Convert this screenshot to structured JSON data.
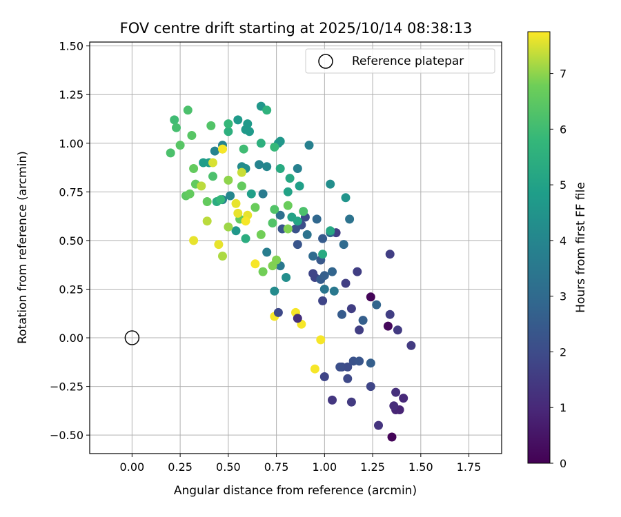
{
  "chart_data": {
    "type": "scatter",
    "title": "FOV centre drift starting at 2025/10/14 08:38:13",
    "xlabel": "Angular distance from reference (arcmin)",
    "ylabel": "Rotation from reference (arcmin)",
    "xlim": [
      -0.22,
      1.92
    ],
    "ylim": [
      -0.595,
      1.52
    ],
    "xticks": [
      "0.00",
      "0.25",
      "0.50",
      "0.75",
      "1.00",
      "1.25",
      "1.50",
      "1.75"
    ],
    "yticks": [
      "−0.50",
      "−0.25",
      "0.00",
      "0.25",
      "0.50",
      "0.75",
      "1.00",
      "1.25",
      "1.50"
    ],
    "grid": true,
    "legend": {
      "location": "upper right",
      "label": "Reference platepar"
    },
    "reference_point": {
      "x": 0.0,
      "y": 0.0
    },
    "colorbar": {
      "label": "Hours from first FF file",
      "min": 0,
      "max": 7.75,
      "ticks": [
        "0",
        "1",
        "2",
        "3",
        "4",
        "5",
        "6",
        "7"
      ],
      "colormap": "viridis"
    },
    "points": [
      [
        1.35,
        -0.51,
        0.1
      ],
      [
        1.24,
        0.21,
        0.1
      ],
      [
        1.33,
        0.06,
        0.2
      ],
      [
        1.37,
        -0.37,
        0.9
      ],
      [
        1.39,
        -0.37,
        0.9
      ],
      [
        1.41,
        -0.31,
        1.0
      ],
      [
        1.36,
        -0.35,
        1.1
      ],
      [
        1.37,
        -0.28,
        1.2
      ],
      [
        1.28,
        -0.45,
        1.3
      ],
      [
        1.04,
        -0.32,
        1.4
      ],
      [
        1.14,
        -0.33,
        1.5
      ],
      [
        1.45,
        -0.04,
        1.5
      ],
      [
        1.38,
        0.04,
        1.5
      ],
      [
        1.34,
        0.12,
        1.6
      ],
      [
        1.34,
        0.43,
        1.6
      ],
      [
        1.17,
        0.34,
        1.6
      ],
      [
        1.18,
        0.04,
        1.6
      ],
      [
        1.14,
        0.15,
        1.6
      ],
      [
        1.11,
        0.28,
        1.6
      ],
      [
        1.06,
        0.54,
        1.6
      ],
      [
        0.95,
        0.31,
        1.8
      ],
      [
        0.94,
        0.33,
        1.8
      ],
      [
        0.99,
        0.19,
        1.8
      ],
      [
        1.0,
        -0.2,
        1.8
      ],
      [
        1.24,
        -0.25,
        1.8
      ],
      [
        1.12,
        -0.21,
        1.9
      ],
      [
        1.12,
        -0.15,
        2.0
      ],
      [
        1.09,
        -0.15,
        2.0
      ],
      [
        1.08,
        -0.15,
        2.1
      ],
      [
        1.15,
        -0.12,
        2.2
      ],
      [
        1.18,
        -0.12,
        2.3
      ],
      [
        1.24,
        -0.13,
        2.6
      ],
      [
        1.27,
        0.17,
        2.8
      ],
      [
        1.2,
        0.09,
        2.6
      ],
      [
        1.09,
        0.12,
        2.5
      ],
      [
        0.9,
        0.62,
        2.0
      ],
      [
        0.88,
        0.58,
        2.1
      ],
      [
        0.85,
        0.56,
        2.2
      ],
      [
        0.86,
        0.48,
        2.3
      ],
      [
        0.78,
        0.56,
        2.3
      ],
      [
        0.98,
        0.4,
        2.4
      ],
      [
        0.98,
        0.3,
        2.5
      ],
      [
        0.99,
        0.51,
        2.5
      ],
      [
        1.0,
        0.32,
        2.6
      ],
      [
        1.04,
        0.34,
        2.8
      ],
      [
        0.96,
        0.61,
        2.9
      ],
      [
        1.03,
        0.54,
        2.9
      ],
      [
        0.94,
        0.42,
        3.0
      ],
      [
        1.1,
        0.48,
        3.0
      ],
      [
        0.77,
        0.63,
        3.2
      ],
      [
        0.91,
        0.53,
        3.3
      ],
      [
        1.13,
        0.61,
        3.3
      ],
      [
        1.0,
        0.25,
        3.4
      ],
      [
        1.05,
        0.24,
        3.5
      ],
      [
        0.77,
        0.37,
        3.5
      ],
      [
        0.68,
        0.74,
        3.6
      ],
      [
        0.7,
        0.44,
        3.7
      ],
      [
        0.86,
        0.87,
        3.8
      ],
      [
        0.74,
        0.24,
        4.2
      ],
      [
        0.8,
        0.31,
        4.3
      ],
      [
        0.47,
        0.71,
        3.8
      ],
      [
        0.92,
        0.99,
        3.8
      ],
      [
        0.66,
        0.89,
        3.9
      ],
      [
        0.43,
        0.96,
        3.9
      ],
      [
        0.47,
        0.99,
        3.9
      ],
      [
        0.51,
        0.73,
        4.0
      ],
      [
        0.7,
        0.88,
        4.0
      ],
      [
        0.57,
        0.88,
        4.2
      ],
      [
        0.59,
        0.87,
        4.3
      ],
      [
        1.03,
        0.79,
        4.3
      ],
      [
        1.11,
        0.72,
        4.5
      ],
      [
        0.76,
        1.0,
        4.5
      ],
      [
        0.77,
        1.01,
        4.6
      ],
      [
        0.54,
        0.55,
        4.6
      ],
      [
        0.67,
        1.19,
        4.6
      ],
      [
        0.59,
        1.07,
        4.7
      ],
      [
        0.6,
        1.1,
        4.7
      ],
      [
        0.55,
        1.12,
        4.7
      ],
      [
        0.61,
        1.06,
        4.7
      ],
      [
        0.37,
        0.9,
        4.8
      ],
      [
        0.4,
        0.9,
        4.8
      ],
      [
        0.87,
        0.78,
        4.9
      ],
      [
        0.62,
        0.74,
        4.9
      ],
      [
        0.81,
        0.75,
        5.0
      ],
      [
        0.83,
        0.62,
        5.0
      ],
      [
        0.86,
        0.6,
        5.1
      ],
      [
        0.82,
        0.82,
        5.2
      ],
      [
        1.03,
        0.55,
        5.2
      ],
      [
        0.99,
        0.43,
        5.3
      ],
      [
        0.59,
        0.51,
        5.4
      ],
      [
        0.44,
        0.7,
        5.4
      ],
      [
        0.5,
        1.06,
        5.5
      ],
      [
        0.67,
        1.0,
        5.5
      ],
      [
        0.77,
        0.87,
        5.3
      ],
      [
        0.7,
        1.17,
        5.6
      ],
      [
        0.5,
        1.1,
        5.8
      ],
      [
        0.46,
        0.71,
        5.8
      ],
      [
        0.74,
        0.98,
        5.8
      ],
      [
        0.58,
        0.97,
        6.0
      ],
      [
        0.22,
        1.12,
        6.0
      ],
      [
        0.23,
        1.08,
        6.1
      ],
      [
        0.29,
        1.17,
        6.2
      ],
      [
        0.2,
        0.95,
        6.2
      ],
      [
        0.42,
        0.83,
        6.2
      ],
      [
        0.73,
        0.59,
        6.3
      ],
      [
        0.74,
        0.66,
        6.3
      ],
      [
        0.89,
        0.65,
        6.2
      ],
      [
        0.31,
        1.04,
        6.4
      ],
      [
        0.41,
        1.09,
        6.3
      ],
      [
        0.25,
        0.99,
        6.4
      ],
      [
        0.28,
        0.73,
        6.5
      ],
      [
        0.3,
        0.74,
        6.6
      ],
      [
        0.33,
        0.79,
        6.6
      ],
      [
        0.32,
        0.87,
        6.6
      ],
      [
        0.39,
        0.7,
        6.6
      ],
      [
        0.57,
        0.78,
        6.6
      ],
      [
        0.56,
        0.61,
        6.6
      ],
      [
        0.64,
        0.67,
        6.7
      ],
      [
        0.67,
        0.53,
        6.8
      ],
      [
        0.68,
        0.34,
        6.8
      ],
      [
        0.73,
        0.37,
        6.9
      ],
      [
        0.75,
        0.4,
        6.9
      ],
      [
        0.81,
        0.56,
        6.9
      ],
      [
        0.81,
        0.68,
        6.7
      ],
      [
        0.5,
        0.81,
        7.0
      ],
      [
        0.47,
        0.97,
        7.1
      ],
      [
        0.5,
        0.57,
        7.1
      ],
      [
        0.47,
        0.42,
        7.2
      ],
      [
        0.36,
        0.78,
        7.3
      ],
      [
        0.39,
        0.6,
        7.3
      ],
      [
        0.57,
        0.85,
        7.4
      ],
      [
        0.42,
        0.9,
        7.5
      ],
      [
        0.6,
        0.63,
        7.6
      ],
      [
        0.54,
        0.69,
        7.6
      ],
      [
        0.55,
        0.64,
        7.6
      ],
      [
        0.32,
        0.5,
        7.6
      ],
      [
        0.45,
        0.48,
        7.6
      ],
      [
        0.64,
        0.38,
        7.7
      ],
      [
        0.74,
        0.11,
        7.7
      ],
      [
        0.85,
        0.13,
        7.7
      ],
      [
        0.88,
        0.07,
        7.7
      ],
      [
        0.98,
        -0.01,
        7.7
      ],
      [
        0.95,
        -0.16,
        7.7
      ],
      [
        0.59,
        0.6,
        7.7
      ],
      [
        0.47,
        0.97,
        7.7
      ],
      [
        0.86,
        0.1,
        1.2
      ],
      [
        0.76,
        0.13,
        1.9
      ]
    ]
  }
}
